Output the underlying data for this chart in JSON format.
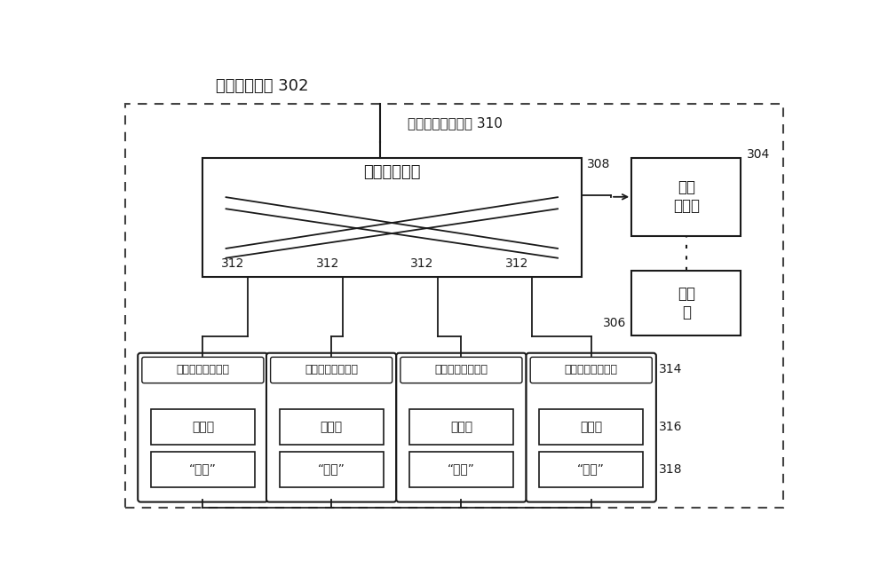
{
  "title": "数据存储系统 302",
  "uplink_label": "上行链路数据路径 310",
  "switch_label": "以太网交换机",
  "switch_num": "308",
  "mapper_ctrl_label": "映射\n控制器",
  "mapper_ctrl_num": "304",
  "mapper_table_label": "映射\n表",
  "mapper_table_num": "306",
  "nic_label": "以太网网络接口卡",
  "nic_num": "312",
  "controller_label": "控制器",
  "controller_num": "316",
  "nand_label": "“与非”",
  "nand_num": "318",
  "nic_right_num": "314",
  "bg_color": "#ffffff",
  "line_color": "#1a1a1a",
  "dashed_color": "#444444"
}
